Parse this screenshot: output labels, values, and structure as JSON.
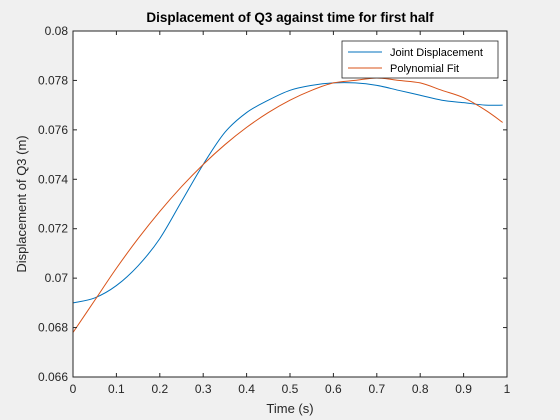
{
  "figure": {
    "background": "#f0f0f0",
    "axes_background": "#ffffff"
  },
  "chart_data": {
    "type": "line",
    "title": "Displacement of Q3 against time for first half",
    "xlabel": "Time (s)",
    "ylabel": "Displacement of Q3 (m)",
    "xlim": [
      0,
      1
    ],
    "ylim": [
      0.066,
      0.08
    ],
    "xticks": [
      0,
      0.1,
      0.2,
      0.3,
      0.4,
      0.5,
      0.6,
      0.7,
      0.8,
      0.9,
      1
    ],
    "xtick_labels": [
      "0",
      "0.1",
      "0.2",
      "0.3",
      "0.4",
      "0.5",
      "0.6",
      "0.7",
      "0.8",
      "0.9",
      "1"
    ],
    "yticks": [
      0.066,
      0.068,
      0.07,
      0.072,
      0.074,
      0.076,
      0.078,
      0.08
    ],
    "ytick_labels": [
      "0.066",
      "0.068",
      "0.07",
      "0.072",
      "0.074",
      "0.076",
      "0.078",
      "0.08"
    ],
    "grid": false,
    "legend_position": "top-right",
    "series": [
      {
        "name": "Joint Displacement",
        "color": "#0072bd",
        "x": [
          0,
          0.05,
          0.1,
          0.15,
          0.2,
          0.25,
          0.3,
          0.35,
          0.4,
          0.45,
          0.5,
          0.55,
          0.6,
          0.65,
          0.7,
          0.75,
          0.8,
          0.85,
          0.9,
          0.95,
          0.99
        ],
        "y": [
          0.069,
          0.0692,
          0.0697,
          0.0705,
          0.0716,
          0.0731,
          0.0746,
          0.0759,
          0.0767,
          0.0772,
          0.0776,
          0.0778,
          0.0779,
          0.0779,
          0.0778,
          0.0776,
          0.0774,
          0.0772,
          0.0771,
          0.077,
          0.077
        ]
      },
      {
        "name": "Polynomial Fit",
        "color": "#d95319",
        "x": [
          0,
          0.05,
          0.1,
          0.15,
          0.2,
          0.25,
          0.3,
          0.35,
          0.4,
          0.45,
          0.5,
          0.55,
          0.6,
          0.65,
          0.7,
          0.75,
          0.8,
          0.85,
          0.9,
          0.95,
          0.99
        ],
        "y": [
          0.0678,
          0.0691,
          0.0704,
          0.0716,
          0.0727,
          0.0737,
          0.0746,
          0.0754,
          0.0761,
          0.0767,
          0.0772,
          0.0776,
          0.0779,
          0.078,
          0.0781,
          0.078,
          0.0779,
          0.0776,
          0.0773,
          0.0768,
          0.0763
        ]
      }
    ]
  }
}
